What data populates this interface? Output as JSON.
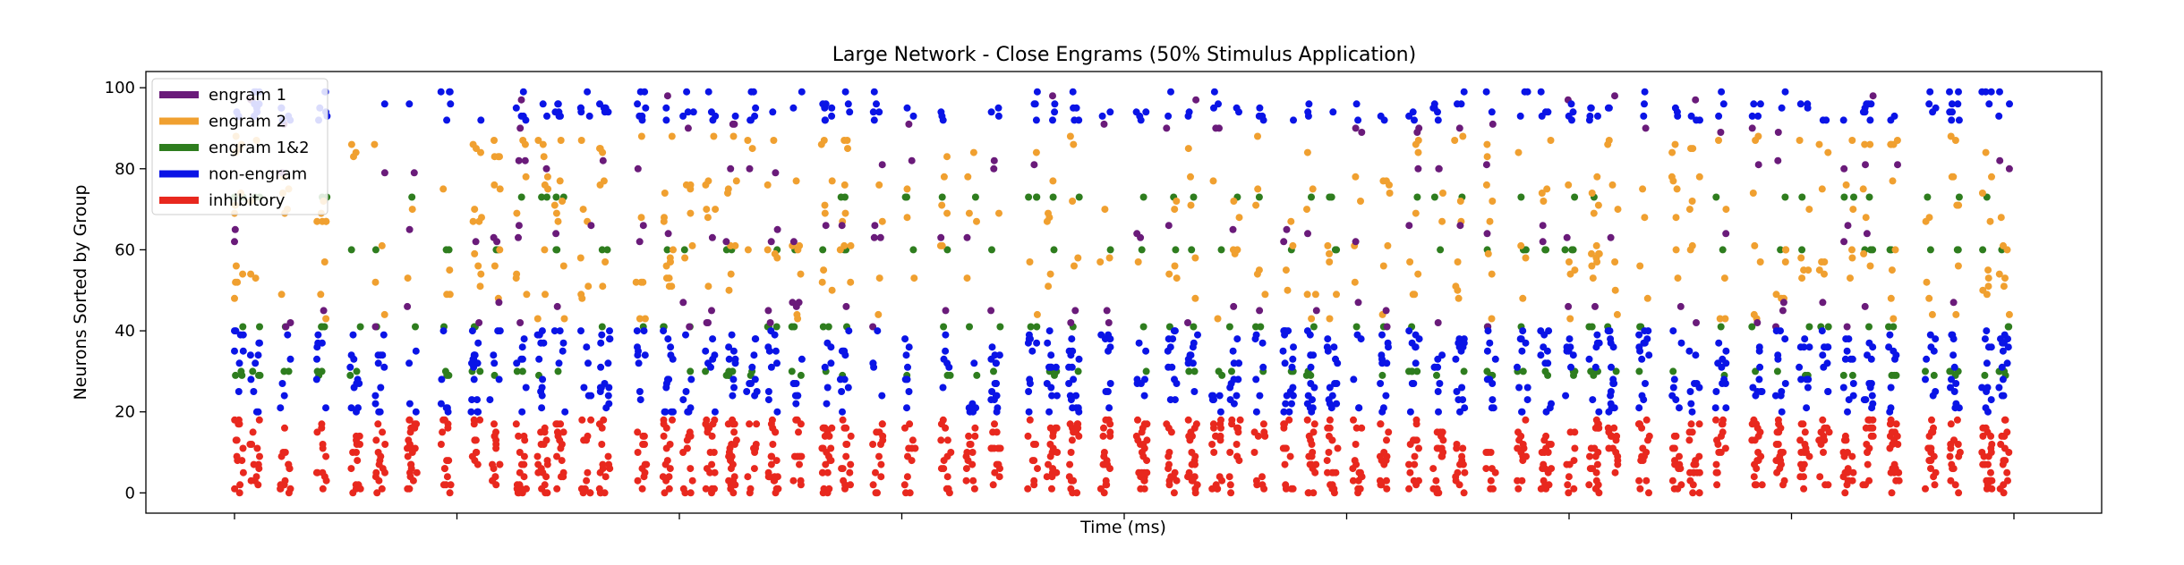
{
  "chart_data": {
    "type": "scatter",
    "title": "Large Network - Close Engrams (50% Stimulus Application)",
    "xlabel": "Time (ms)",
    "ylabel": "Neurons Sorted by Group",
    "ylim": [
      -5,
      104
    ],
    "y_ticks": [
      0,
      20,
      40,
      60,
      80,
      100
    ],
    "x_tick_count": 9,
    "x_tick_labels": [],
    "grid": false,
    "legend_position": "top-left",
    "series": [
      {
        "name": "engram 1",
        "color": "#6a1b7a",
        "neuron_rows": [
          41,
          42,
          45,
          46,
          47,
          62,
          63,
          64,
          65,
          66,
          79,
          80,
          81,
          82,
          89,
          90,
          91,
          97,
          98
        ]
      },
      {
        "name": "engram 2",
        "color": "#f0a030",
        "neuron_rows": [
          43,
          44,
          48,
          49,
          50,
          51,
          52,
          53,
          54,
          55,
          56,
          57,
          58,
          59,
          60,
          61,
          67,
          68,
          69,
          70,
          71,
          72,
          74,
          75,
          76,
          77,
          78,
          83,
          84,
          85,
          86,
          87,
          88
        ]
      },
      {
        "name": "engram 1&2",
        "color": "#2e7d1e",
        "neuron_rows": [
          29,
          30,
          41,
          60,
          73
        ]
      },
      {
        "name": "non-engram",
        "color": "#0a14e6",
        "neuron_rows": [
          20,
          21,
          22,
          23,
          24,
          25,
          26,
          27,
          28,
          31,
          32,
          33,
          34,
          35,
          36,
          37,
          38,
          39,
          40,
          92,
          93,
          94,
          95,
          96,
          99
        ]
      },
      {
        "name": "inhibitory",
        "color": "#e8281e",
        "neuron_rows": [
          0,
          1,
          2,
          3,
          4,
          5,
          6,
          7,
          8,
          9,
          10,
          11,
          12,
          13,
          14,
          15,
          16,
          17,
          18
        ]
      }
    ],
    "time_range": [
      0,
      1000
    ],
    "approx_spike_count_per_group": {
      "engram 1": 150,
      "engram 2": 420,
      "engram 1&2": 260,
      "non-engram": 900,
      "inhibitory": 1100
    }
  }
}
